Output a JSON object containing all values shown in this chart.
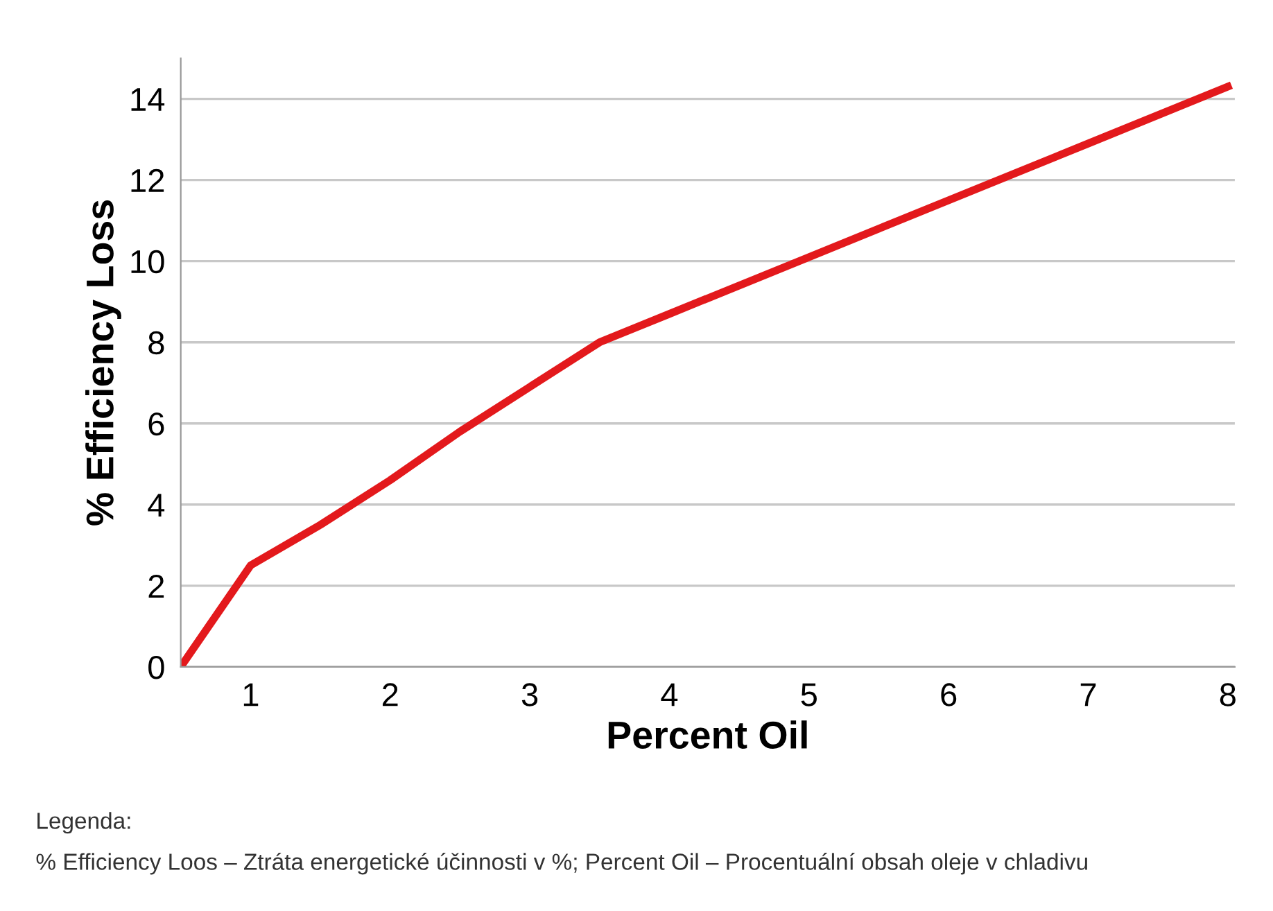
{
  "chart_data": {
    "type": "line",
    "xlabel": "Percent Oil",
    "ylabel": "% Efficiency Loss",
    "x": [
      0.5,
      1,
      1.5,
      2,
      2.5,
      3,
      3.5,
      4,
      5,
      6,
      7,
      8
    ],
    "series": [
      {
        "color": "#e3191c",
        "values": [
          0,
          2.5,
          3.5,
          4.6,
          5.8,
          6.9,
          8.0,
          8.7,
          10.1,
          11.5,
          12.9,
          14.3
        ]
      }
    ],
    "xlim": [
      0.5,
      8.05
    ],
    "xticks": [
      1,
      2,
      3,
      4,
      5,
      6,
      7,
      8
    ],
    "ylim": [
      0,
      15
    ],
    "yticks": [
      0,
      2,
      4,
      6,
      8,
      10,
      12,
      14
    ],
    "grid": "y",
    "legend": false,
    "marker": "none",
    "line_style": "solid",
    "annotations": [
      "Legenda:",
      "% Efficiency Loos – Ztráta energetické účinnosti v %; Percent Oil – Procentuální obsah oleje v chladivu"
    ]
  }
}
